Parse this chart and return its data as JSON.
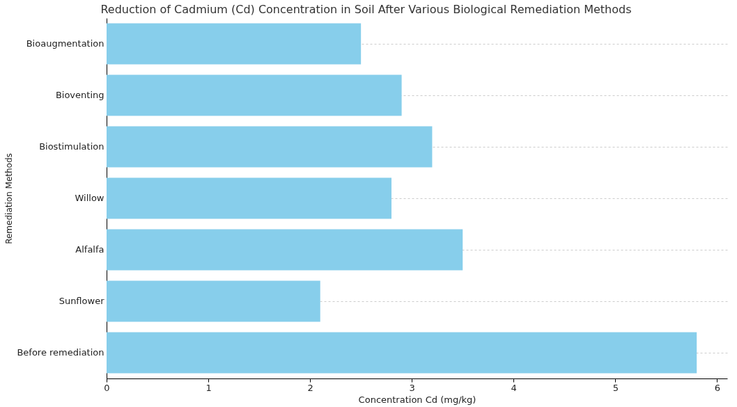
{
  "chart_data": {
    "type": "bar",
    "orientation": "horizontal",
    "title": "Reduction of Cadmium (Cd) Concentration in Soil After Various Biological Remediation Methods",
    "xlabel": "Concentration Cd (mg/kg)",
    "ylabel": "Remediation Methods",
    "categories": [
      "Bioaugmentation",
      "Bioventing",
      "Biostimulation",
      "Willow",
      "Alfalfa",
      "Sunflower",
      "Before remediation"
    ],
    "values": [
      2.5,
      2.9,
      3.2,
      2.8,
      3.5,
      2.1,
      5.8
    ],
    "color": "#87ceeb",
    "xlim": [
      0,
      6.1
    ],
    "xticks": [
      0,
      1,
      2,
      3,
      4,
      5,
      6
    ],
    "grid": "y"
  }
}
